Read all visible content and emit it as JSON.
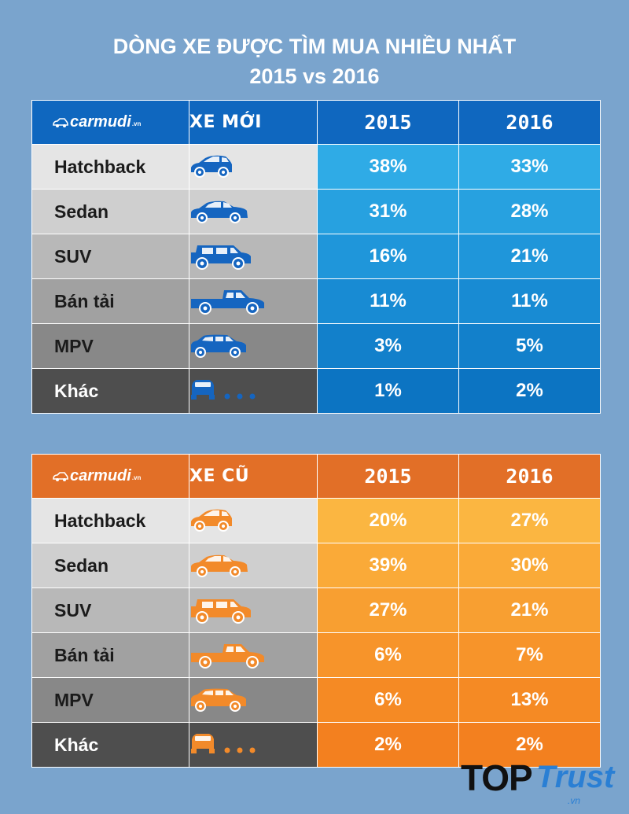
{
  "title_line1": "DÒNG XE ĐƯỢC TÌM MUA NHIỀU NHẤT",
  "title_line2": "2015 vs 2016",
  "brand_name": "carmudi",
  "brand_suffix": ".vn",
  "colors": {
    "background": "#7aa4cd",
    "new_accent": "#0f67bf",
    "used_accent": "#e26f27",
    "new_icon": "#1565c0",
    "used_icon": "#f28a2a"
  },
  "chart_data": [
    {
      "type": "table",
      "title": "XE MỚI",
      "columns": [
        "2015",
        "2016"
      ],
      "rows": [
        {
          "name": "Hatchback",
          "icon": "hatchback-car-icon",
          "v2015": "38%",
          "v2016": "33%"
        },
        {
          "name": "Sedan",
          "icon": "sedan-car-icon",
          "v2015": "31%",
          "v2016": "28%"
        },
        {
          "name": "SUV",
          "icon": "suv-car-icon",
          "v2015": "16%",
          "v2016": "21%"
        },
        {
          "name": "Bán tải",
          "icon": "pickup-truck-icon",
          "v2015": "11%",
          "v2016": "11%"
        },
        {
          "name": "MPV",
          "icon": "mpv-car-icon",
          "v2015": "3%",
          "v2016": "5%"
        },
        {
          "name": "Khác",
          "icon": "other-car-icon",
          "v2015": "1%",
          "v2016": "2%"
        }
      ]
    },
    {
      "type": "table",
      "title": "XE CŨ",
      "columns": [
        "2015",
        "2016"
      ],
      "rows": [
        {
          "name": "Hatchback",
          "icon": "hatchback-car-icon",
          "v2015": "20%",
          "v2016": "27%"
        },
        {
          "name": "Sedan",
          "icon": "sedan-car-icon",
          "v2015": "39%",
          "v2016": "30%"
        },
        {
          "name": "SUV",
          "icon": "suv-car-icon",
          "v2015": "27%",
          "v2016": "21%"
        },
        {
          "name": "Bán tải",
          "icon": "pickup-truck-icon",
          "v2015": "6%",
          "v2016": "7%"
        },
        {
          "name": "MPV",
          "icon": "mpv-car-icon",
          "v2015": "6%",
          "v2016": "13%"
        },
        {
          "name": "Khác",
          "icon": "other-car-icon",
          "v2015": "2%",
          "v2016": "2%"
        }
      ]
    }
  ],
  "watermark": {
    "top": "TOP",
    "trust": "Trust",
    "domain": ".vn"
  }
}
